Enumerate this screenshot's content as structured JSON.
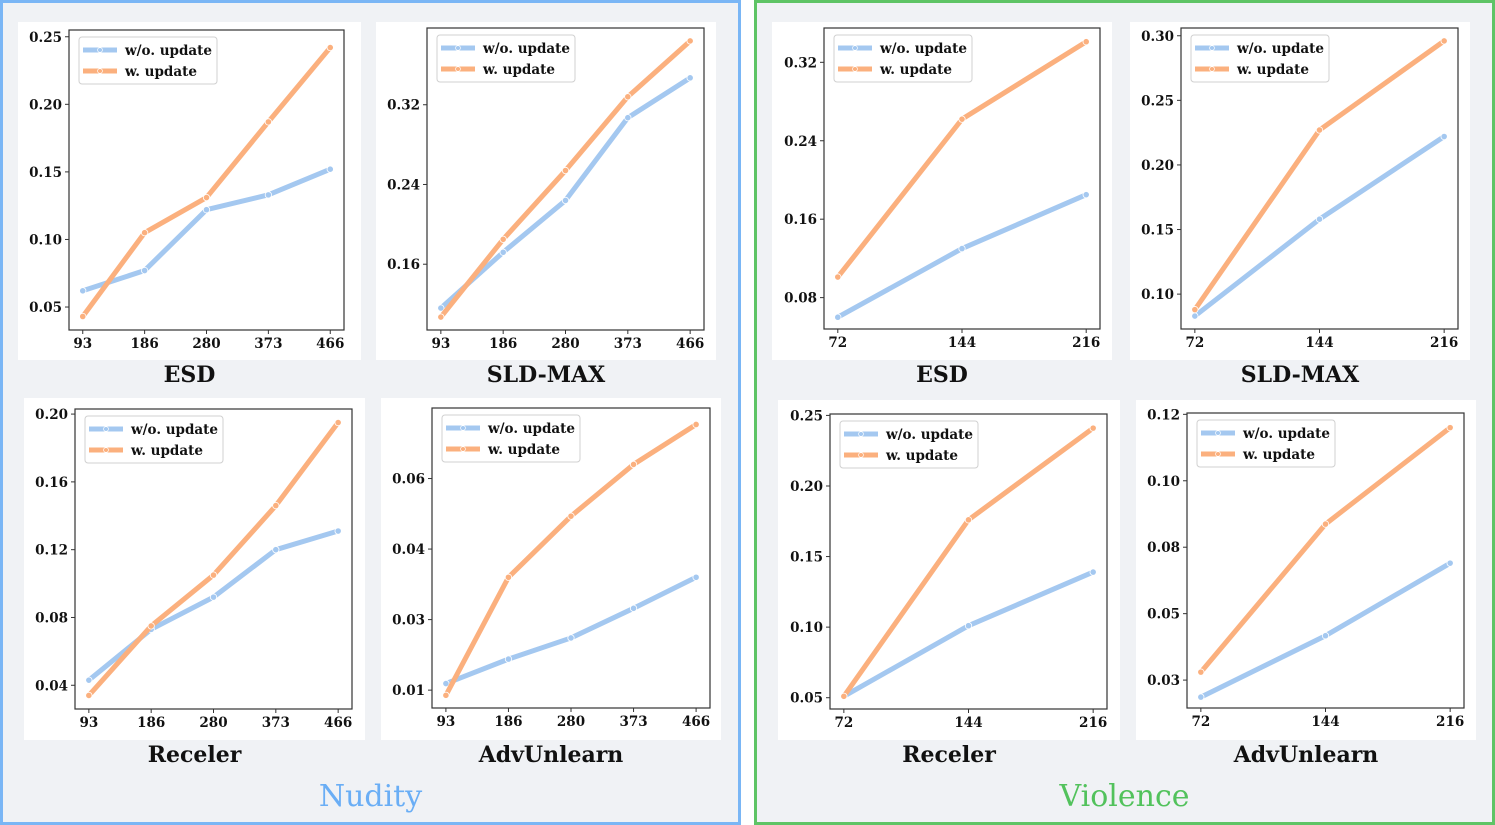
{
  "groups": [
    {
      "id": "nudity",
      "title": "Nudity",
      "color": "#6aaef5"
    },
    {
      "id": "violence",
      "title": "Violence",
      "color": "#52c25c"
    }
  ],
  "legend": {
    "series_labels": [
      "w/o. update",
      "w. update"
    ]
  },
  "colors": {
    "without_update": "#a4c8f0",
    "with_update": "#fbb07e"
  },
  "chart_data": [
    {
      "type": "line",
      "group": "Nudity",
      "title": "ESD",
      "xlabel": "ESD",
      "ylabel": "",
      "x": [
        93,
        186,
        280,
        373,
        466
      ],
      "xticks": [
        "93",
        "186",
        "280",
        "373",
        "466"
      ],
      "yticks": [
        0.05,
        0.1,
        0.15,
        0.2,
        0.25
      ],
      "ytick_labels": [
        "0.05",
        "0.10",
        "0.15",
        "0.20",
        "0.25"
      ],
      "ylim": [
        0.033,
        0.255
      ],
      "legend": "top-left",
      "grid": false,
      "series": [
        {
          "name": "w/o. update",
          "values": [
            0.062,
            0.077,
            0.122,
            0.133,
            0.152
          ]
        },
        {
          "name": "w. update",
          "values": [
            0.043,
            0.105,
            0.131,
            0.187,
            0.242
          ]
        }
      ]
    },
    {
      "type": "line",
      "group": "Nudity",
      "title": "SLD-MAX",
      "xlabel": "SLD-MAX",
      "ylabel": "",
      "x": [
        93,
        186,
        280,
        373,
        466
      ],
      "xticks": [
        "93",
        "186",
        "280",
        "373",
        "466"
      ],
      "yticks": [
        0.16,
        0.24,
        0.32
      ],
      "ytick_labels": [
        "0.16",
        "0.24",
        "0.32"
      ],
      "ylim": [
        0.094,
        0.397
      ],
      "legend": "top-left",
      "grid": false,
      "series": [
        {
          "name": "w/o. update",
          "values": [
            0.116,
            0.172,
            0.224,
            0.307,
            0.347
          ]
        },
        {
          "name": "w. update",
          "values": [
            0.107,
            0.185,
            0.254,
            0.328,
            0.384
          ]
        }
      ]
    },
    {
      "type": "line",
      "group": "Nudity",
      "title": "Receler",
      "xlabel": "Receler",
      "ylabel": "",
      "x": [
        93,
        186,
        280,
        373,
        466
      ],
      "xticks": [
        "93",
        "186",
        "280",
        "373",
        "466"
      ],
      "yticks": [
        0.04,
        0.08,
        0.12,
        0.16,
        0.2
      ],
      "ytick_labels": [
        "0.04",
        "0.08",
        "0.12",
        "0.16",
        "0.20"
      ],
      "ylim": [
        0.026,
        0.203
      ],
      "legend": "top-left",
      "grid": false,
      "series": [
        {
          "name": "w/o. update",
          "values": [
            0.043,
            0.073,
            0.092,
            0.12,
            0.131
          ]
        },
        {
          "name": "w. update",
          "values": [
            0.034,
            0.075,
            0.105,
            0.146,
            0.195
          ]
        }
      ]
    },
    {
      "type": "line",
      "group": "Nudity",
      "title": "AdvUnlearn",
      "xlabel": "AdvUnlearn",
      "ylabel": "",
      "x": [
        93,
        186,
        280,
        373,
        466
      ],
      "xticks": [
        "93",
        "186",
        "280",
        "373",
        "466"
      ],
      "yticks": [
        0.01,
        0.025,
        0.04,
        0.055
      ],
      "ytick_labels": [
        "0.01",
        "0.03",
        "0.04",
        "0.06"
      ],
      "ylim": [
        0.0062,
        0.07
      ],
      "legend": "top-left",
      "grid": false,
      "series": [
        {
          "name": "w/o. update",
          "values": [
            0.0114,
            0.0166,
            0.0211,
            0.0274,
            0.034
          ]
        },
        {
          "name": "w. update",
          "values": [
            0.0089,
            0.034,
            0.047,
            0.058,
            0.0665
          ]
        }
      ]
    },
    {
      "type": "line",
      "group": "Violence",
      "title": "ESD",
      "xlabel": "ESD",
      "ylabel": "",
      "x": [
        72,
        144,
        216
      ],
      "xticks": [
        "72",
        "144",
        "216"
      ],
      "yticks": [
        0.08,
        0.16,
        0.24,
        0.32
      ],
      "ytick_labels": [
        "0.08",
        "0.16",
        "0.24",
        "0.32"
      ],
      "ylim": [
        0.048,
        0.355
      ],
      "legend": "top-left",
      "grid": false,
      "series": [
        {
          "name": "w/o. update",
          "values": [
            0.06,
            0.13,
            0.185
          ]
        },
        {
          "name": "w. update",
          "values": [
            0.101,
            0.262,
            0.341
          ]
        }
      ]
    },
    {
      "type": "line",
      "group": "Violence",
      "title": "SLD-MAX",
      "xlabel": "SLD-MAX",
      "ylabel": "",
      "x": [
        72,
        144,
        216
      ],
      "xticks": [
        "72",
        "144",
        "216"
      ],
      "yticks": [
        0.1,
        0.15,
        0.2,
        0.25,
        0.3
      ],
      "ytick_labels": [
        "0.10",
        "0.15",
        "0.20",
        "0.25",
        "0.30"
      ],
      "ylim": [
        0.073,
        0.306
      ],
      "legend": "top-left",
      "grid": false,
      "series": [
        {
          "name": "w/o. update",
          "values": [
            0.083,
            0.158,
            0.222
          ]
        },
        {
          "name": "w. update",
          "values": [
            0.088,
            0.227,
            0.296
          ]
        }
      ]
    },
    {
      "type": "line",
      "group": "Violence",
      "title": "Receler",
      "xlabel": "Receler",
      "ylabel": "",
      "x": [
        72,
        144,
        216
      ],
      "xticks": [
        "72",
        "144",
        "216"
      ],
      "yticks": [
        0.05,
        0.1,
        0.15,
        0.2,
        0.25
      ],
      "ytick_labels": [
        "0.05",
        "0.10",
        "0.15",
        "0.20",
        "0.25"
      ],
      "ylim": [
        0.042,
        0.251
      ],
      "legend": "top-left",
      "grid": false,
      "series": [
        {
          "name": "w/o. update",
          "values": [
            0.051,
            0.101,
            0.139
          ]
        },
        {
          "name": "w. update",
          "values": [
            0.051,
            0.176,
            0.241
          ]
        }
      ]
    },
    {
      "type": "line",
      "group": "Violence",
      "title": "AdvUnlearn",
      "xlabel": "AdvUnlearn",
      "ylabel": "",
      "x": [
        72,
        144,
        216
      ],
      "xticks": [
        "72",
        "144",
        "216"
      ],
      "yticks": [
        0.025,
        0.05,
        0.075,
        0.1,
        0.125
      ],
      "ytick_labels": [
        "0.03",
        "0.05",
        "0.08",
        "0.10",
        "0.12"
      ],
      "ylim": [
        0.0145,
        0.1255
      ],
      "legend": "top-left",
      "grid": false,
      "series": [
        {
          "name": "w/o. update",
          "values": [
            0.0186,
            0.0417,
            0.069
          ]
        },
        {
          "name": "w. update",
          "values": [
            0.028,
            0.0837,
            0.12
          ]
        }
      ]
    }
  ]
}
